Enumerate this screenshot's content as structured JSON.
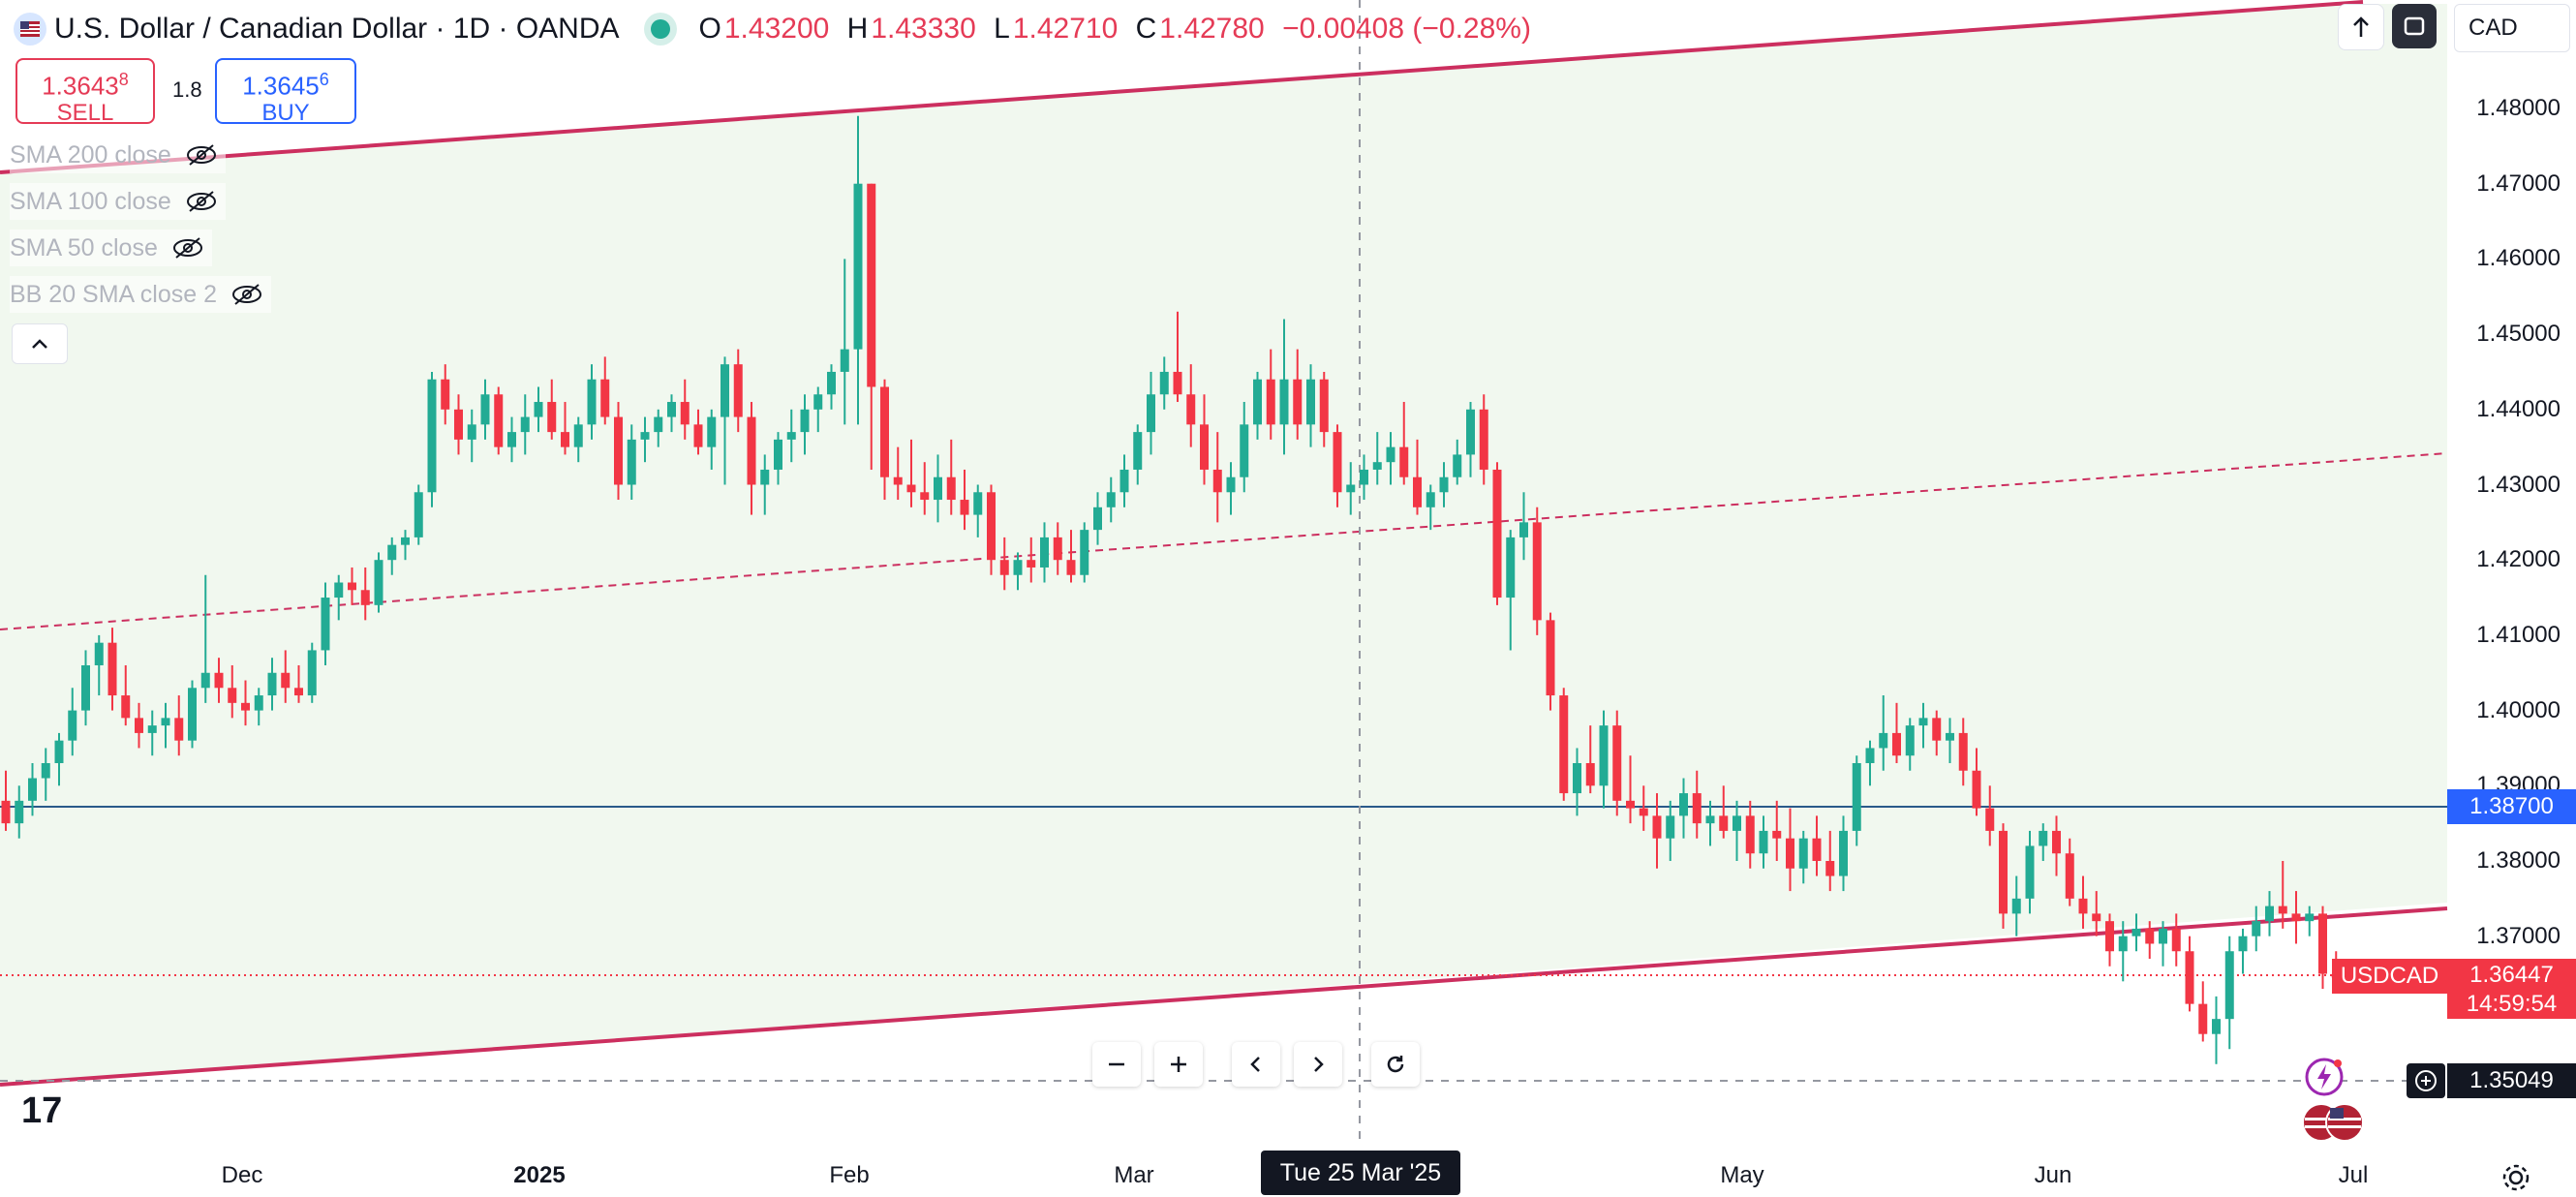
{
  "header": {
    "symbol_title": "U.S. Dollar / Canadian Dollar · 1D · OANDA",
    "ohlc": [
      {
        "k": "O",
        "v": "1.43200"
      },
      {
        "k": "H",
        "v": "1.43330"
      },
      {
        "k": "L",
        "v": "1.42710"
      },
      {
        "k": "C",
        "v": "1.42780"
      }
    ],
    "change": "−0.00408 (−0.28%)",
    "currency": "CAD"
  },
  "trade": {
    "sell_price_main": "1.3643",
    "sell_price_sup": "8",
    "sell_label": "SELL",
    "spread": "1.8",
    "buy_price_main": "1.3645",
    "buy_price_sup": "6",
    "buy_label": "BUY"
  },
  "indicators": [
    "SMA 200 close",
    "SMA 100 close",
    "SMA 50 close",
    "BB 20 SMA close 2"
  ],
  "price_axis": {
    "ticks": [
      "1.48000",
      "1.47000",
      "1.46000",
      "1.45000",
      "1.44000",
      "1.43000",
      "1.42000",
      "1.41000",
      "1.40000",
      "1.39000",
      "1.38000",
      "1.37000"
    ],
    "hline_label": "1.38700",
    "last_symbol": "USDCAD",
    "last_price": "1.36447",
    "countdown": "14:59:54",
    "crosshair_price": "1.35049"
  },
  "time_axis": {
    "labels": [
      {
        "text": "Dec",
        "bold": false
      },
      {
        "text": "2025",
        "bold": true
      },
      {
        "text": "Feb",
        "bold": false
      },
      {
        "text": "Mar",
        "bold": false
      },
      {
        "text": "May",
        "bold": false
      },
      {
        "text": "Jun",
        "bold": false
      },
      {
        "text": "Jul",
        "bold": false
      }
    ],
    "crosshair_date": "Tue 25 Mar '25"
  },
  "logo": "17",
  "colors": {
    "up": "#22ab94",
    "down": "#f23645",
    "channel": "#cc2f5f",
    "channel_fill": "#f1f8ef",
    "hline": "#2a5a8a",
    "axis_blue": "#2962ff",
    "axis_red": "#f23645"
  },
  "icons": [
    "flag-icon",
    "eye-slash-icon",
    "chevron-up-icon",
    "arrow-up-icon",
    "fullscreen-icon",
    "minus-icon",
    "plus-icon",
    "chevron-left-icon",
    "chevron-right-icon",
    "reset-icon",
    "plus-circle-icon",
    "bolt-icon",
    "gear-icon"
  ],
  "chart_data": {
    "type": "candlestick",
    "price_range": [
      1.345,
      1.485
    ],
    "horizontal_line": 1.387,
    "last_price": 1.36447,
    "crosshair": {
      "date": "Tue 25 Mar '25",
      "price": 1.35049
    },
    "ohlc": [
      [
        1.388,
        1.392,
        1.384,
        1.385
      ],
      [
        1.385,
        1.39,
        1.383,
        1.388
      ],
      [
        1.388,
        1.393,
        1.386,
        1.391
      ],
      [
        1.391,
        1.395,
        1.388,
        1.393
      ],
      [
        1.393,
        1.397,
        1.39,
        1.396
      ],
      [
        1.396,
        1.403,
        1.394,
        1.4
      ],
      [
        1.4,
        1.408,
        1.398,
        1.406
      ],
      [
        1.406,
        1.41,
        1.402,
        1.409
      ],
      [
        1.409,
        1.411,
        1.4,
        1.402
      ],
      [
        1.402,
        1.406,
        1.398,
        1.399
      ],
      [
        1.399,
        1.401,
        1.395,
        1.397
      ],
      [
        1.397,
        1.4,
        1.394,
        1.398
      ],
      [
        1.398,
        1.401,
        1.395,
        1.399
      ],
      [
        1.399,
        1.402,
        1.394,
        1.396
      ],
      [
        1.396,
        1.404,
        1.395,
        1.403
      ],
      [
        1.403,
        1.418,
        1.401,
        1.405
      ],
      [
        1.405,
        1.407,
        1.401,
        1.403
      ],
      [
        1.403,
        1.406,
        1.399,
        1.401
      ],
      [
        1.401,
        1.404,
        1.398,
        1.4
      ],
      [
        1.4,
        1.403,
        1.398,
        1.402
      ],
      [
        1.402,
        1.407,
        1.4,
        1.405
      ],
      [
        1.405,
        1.408,
        1.401,
        1.403
      ],
      [
        1.403,
        1.406,
        1.401,
        1.402
      ],
      [
        1.402,
        1.409,
        1.401,
        1.408
      ],
      [
        1.408,
        1.417,
        1.406,
        1.415
      ],
      [
        1.415,
        1.418,
        1.412,
        1.417
      ],
      [
        1.417,
        1.419,
        1.414,
        1.416
      ],
      [
        1.416,
        1.419,
        1.412,
        1.414
      ],
      [
        1.414,
        1.421,
        1.413,
        1.42
      ],
      [
        1.42,
        1.423,
        1.418,
        1.422
      ],
      [
        1.422,
        1.424,
        1.42,
        1.423
      ],
      [
        1.423,
        1.43,
        1.422,
        1.429
      ],
      [
        1.429,
        1.445,
        1.427,
        1.444
      ],
      [
        1.444,
        1.446,
        1.438,
        1.44
      ],
      [
        1.44,
        1.442,
        1.434,
        1.436
      ],
      [
        1.436,
        1.44,
        1.433,
        1.438
      ],
      [
        1.438,
        1.444,
        1.436,
        1.442
      ],
      [
        1.442,
        1.443,
        1.434,
        1.435
      ],
      [
        1.435,
        1.439,
        1.433,
        1.437
      ],
      [
        1.437,
        1.442,
        1.434,
        1.439
      ],
      [
        1.439,
        1.443,
        1.437,
        1.441
      ],
      [
        1.441,
        1.444,
        1.436,
        1.437
      ],
      [
        1.437,
        1.441,
        1.434,
        1.435
      ],
      [
        1.435,
        1.439,
        1.433,
        1.438
      ],
      [
        1.438,
        1.446,
        1.436,
        1.444
      ],
      [
        1.444,
        1.447,
        1.438,
        1.439
      ],
      [
        1.439,
        1.441,
        1.428,
        1.43
      ],
      [
        1.43,
        1.438,
        1.428,
        1.436
      ],
      [
        1.436,
        1.439,
        1.433,
        1.437
      ],
      [
        1.437,
        1.44,
        1.435,
        1.439
      ],
      [
        1.439,
        1.442,
        1.437,
        1.441
      ],
      [
        1.441,
        1.444,
        1.436,
        1.438
      ],
      [
        1.438,
        1.44,
        1.434,
        1.435
      ],
      [
        1.435,
        1.44,
        1.432,
        1.439
      ],
      [
        1.439,
        1.447,
        1.43,
        1.446
      ],
      [
        1.446,
        1.448,
        1.437,
        1.439
      ],
      [
        1.439,
        1.441,
        1.426,
        1.43
      ],
      [
        1.43,
        1.434,
        1.426,
        1.432
      ],
      [
        1.432,
        1.437,
        1.43,
        1.436
      ],
      [
        1.436,
        1.44,
        1.433,
        1.437
      ],
      [
        1.437,
        1.442,
        1.434,
        1.44
      ],
      [
        1.44,
        1.443,
        1.437,
        1.442
      ],
      [
        1.442,
        1.446,
        1.44,
        1.445
      ],
      [
        1.445,
        1.46,
        1.438,
        1.448
      ],
      [
        1.448,
        1.479,
        1.438,
        1.47
      ],
      [
        1.47,
        1.47,
        1.432,
        1.443
      ],
      [
        1.443,
        1.444,
        1.428,
        1.431
      ],
      [
        1.431,
        1.435,
        1.428,
        1.43
      ],
      [
        1.43,
        1.436,
        1.427,
        1.429
      ],
      [
        1.429,
        1.433,
        1.426,
        1.428
      ],
      [
        1.428,
        1.434,
        1.425,
        1.431
      ],
      [
        1.431,
        1.436,
        1.426,
        1.428
      ],
      [
        1.428,
        1.432,
        1.424,
        1.426
      ],
      [
        1.426,
        1.43,
        1.423,
        1.429
      ],
      [
        1.429,
        1.43,
        1.418,
        1.42
      ],
      [
        1.42,
        1.423,
        1.416,
        1.418
      ],
      [
        1.418,
        1.421,
        1.416,
        1.42
      ],
      [
        1.42,
        1.423,
        1.417,
        1.419
      ],
      [
        1.419,
        1.425,
        1.417,
        1.423
      ],
      [
        1.423,
        1.425,
        1.418,
        1.42
      ],
      [
        1.42,
        1.424,
        1.417,
        1.418
      ],
      [
        1.418,
        1.425,
        1.417,
        1.424
      ],
      [
        1.424,
        1.429,
        1.422,
        1.427
      ],
      [
        1.427,
        1.431,
        1.425,
        1.429
      ],
      [
        1.429,
        1.434,
        1.427,
        1.432
      ],
      [
        1.432,
        1.438,
        1.43,
        1.437
      ],
      [
        1.437,
        1.445,
        1.434,
        1.442
      ],
      [
        1.442,
        1.447,
        1.44,
        1.445
      ],
      [
        1.445,
        1.453,
        1.441,
        1.442
      ],
      [
        1.442,
        1.446,
        1.435,
        1.438
      ],
      [
        1.438,
        1.442,
        1.43,
        1.432
      ],
      [
        1.432,
        1.437,
        1.425,
        1.429
      ],
      [
        1.429,
        1.433,
        1.426,
        1.431
      ],
      [
        1.431,
        1.441,
        1.429,
        1.438
      ],
      [
        1.438,
        1.445,
        1.436,
        1.444
      ],
      [
        1.444,
        1.448,
        1.436,
        1.438
      ],
      [
        1.438,
        1.452,
        1.434,
        1.444
      ],
      [
        1.444,
        1.448,
        1.436,
        1.438
      ],
      [
        1.438,
        1.446,
        1.435,
        1.444
      ],
      [
        1.444,
        1.445,
        1.435,
        1.437
      ],
      [
        1.437,
        1.438,
        1.427,
        1.429
      ],
      [
        1.429,
        1.433,
        1.426,
        1.43
      ],
      [
        1.43,
        1.434,
        1.428,
        1.432
      ],
      [
        1.432,
        1.437,
        1.43,
        1.433
      ],
      [
        1.433,
        1.437,
        1.43,
        1.435
      ],
      [
        1.435,
        1.441,
        1.43,
        1.431
      ],
      [
        1.431,
        1.436,
        1.426,
        1.427
      ],
      [
        1.427,
        1.43,
        1.424,
        1.429
      ],
      [
        1.429,
        1.433,
        1.427,
        1.431
      ],
      [
        1.431,
        1.436,
        1.43,
        1.434
      ],
      [
        1.434,
        1.441,
        1.431,
        1.44
      ],
      [
        1.44,
        1.442,
        1.43,
        1.432
      ],
      [
        1.432,
        1.433,
        1.414,
        1.415
      ],
      [
        1.415,
        1.424,
        1.408,
        1.423
      ],
      [
        1.423,
        1.429,
        1.42,
        1.425
      ],
      [
        1.425,
        1.427,
        1.41,
        1.412
      ],
      [
        1.412,
        1.413,
        1.4,
        1.402
      ],
      [
        1.402,
        1.403,
        1.388,
        1.389
      ],
      [
        1.389,
        1.395,
        1.386,
        1.393
      ],
      [
        1.393,
        1.398,
        1.389,
        1.39
      ],
      [
        1.39,
        1.4,
        1.387,
        1.398
      ],
      [
        1.398,
        1.4,
        1.386,
        1.388
      ],
      [
        1.388,
        1.394,
        1.385,
        1.387
      ],
      [
        1.387,
        1.39,
        1.384,
        1.386
      ],
      [
        1.386,
        1.389,
        1.379,
        1.383
      ],
      [
        1.383,
        1.388,
        1.38,
        1.386
      ],
      [
        1.386,
        1.391,
        1.383,
        1.389
      ],
      [
        1.389,
        1.392,
        1.383,
        1.385
      ],
      [
        1.385,
        1.388,
        1.382,
        1.386
      ],
      [
        1.386,
        1.39,
        1.383,
        1.384
      ],
      [
        1.384,
        1.388,
        1.38,
        1.386
      ],
      [
        1.386,
        1.388,
        1.379,
        1.381
      ],
      [
        1.381,
        1.386,
        1.379,
        1.384
      ],
      [
        1.384,
        1.388,
        1.38,
        1.383
      ],
      [
        1.383,
        1.387,
        1.376,
        1.379
      ],
      [
        1.379,
        1.384,
        1.377,
        1.383
      ],
      [
        1.383,
        1.386,
        1.378,
        1.38
      ],
      [
        1.38,
        1.384,
        1.376,
        1.378
      ],
      [
        1.378,
        1.386,
        1.376,
        1.384
      ],
      [
        1.384,
        1.394,
        1.382,
        1.393
      ],
      [
        1.393,
        1.396,
        1.39,
        1.395
      ],
      [
        1.395,
        1.402,
        1.392,
        1.397
      ],
      [
        1.397,
        1.401,
        1.393,
        1.394
      ],
      [
        1.394,
        1.399,
        1.392,
        1.398
      ],
      [
        1.398,
        1.401,
        1.395,
        1.399
      ],
      [
        1.399,
        1.4,
        1.394,
        1.396
      ],
      [
        1.396,
        1.399,
        1.393,
        1.397
      ],
      [
        1.397,
        1.399,
        1.39,
        1.392
      ],
      [
        1.392,
        1.395,
        1.386,
        1.387
      ],
      [
        1.387,
        1.39,
        1.382,
        1.384
      ],
      [
        1.384,
        1.385,
        1.371,
        1.373
      ],
      [
        1.373,
        1.378,
        1.37,
        1.375
      ],
      [
        1.375,
        1.384,
        1.373,
        1.382
      ],
      [
        1.382,
        1.385,
        1.38,
        1.384
      ],
      [
        1.384,
        1.386,
        1.378,
        1.381
      ],
      [
        1.381,
        1.383,
        1.374,
        1.375
      ],
      [
        1.375,
        1.378,
        1.371,
        1.373
      ],
      [
        1.373,
        1.376,
        1.37,
        1.372
      ],
      [
        1.372,
        1.373,
        1.366,
        1.368
      ],
      [
        1.368,
        1.372,
        1.364,
        1.37
      ],
      [
        1.37,
        1.373,
        1.368,
        1.371
      ],
      [
        1.371,
        1.372,
        1.367,
        1.369
      ],
      [
        1.369,
        1.372,
        1.366,
        1.371
      ],
      [
        1.371,
        1.373,
        1.366,
        1.368
      ],
      [
        1.368,
        1.37,
        1.36,
        1.361
      ],
      [
        1.361,
        1.364,
        1.356,
        1.357
      ],
      [
        1.357,
        1.362,
        1.353,
        1.359
      ],
      [
        1.359,
        1.37,
        1.355,
        1.368
      ],
      [
        1.368,
        1.371,
        1.365,
        1.37
      ],
      [
        1.37,
        1.374,
        1.368,
        1.372
      ],
      [
        1.372,
        1.376,
        1.37,
        1.374
      ],
      [
        1.374,
        1.38,
        1.371,
        1.373
      ],
      [
        1.373,
        1.376,
        1.369,
        1.372
      ],
      [
        1.372,
        1.374,
        1.37,
        1.373
      ],
      [
        1.373,
        1.374,
        1.363,
        1.365
      ],
      [
        1.365,
        1.368,
        1.363,
        1.3645
      ]
    ]
  }
}
